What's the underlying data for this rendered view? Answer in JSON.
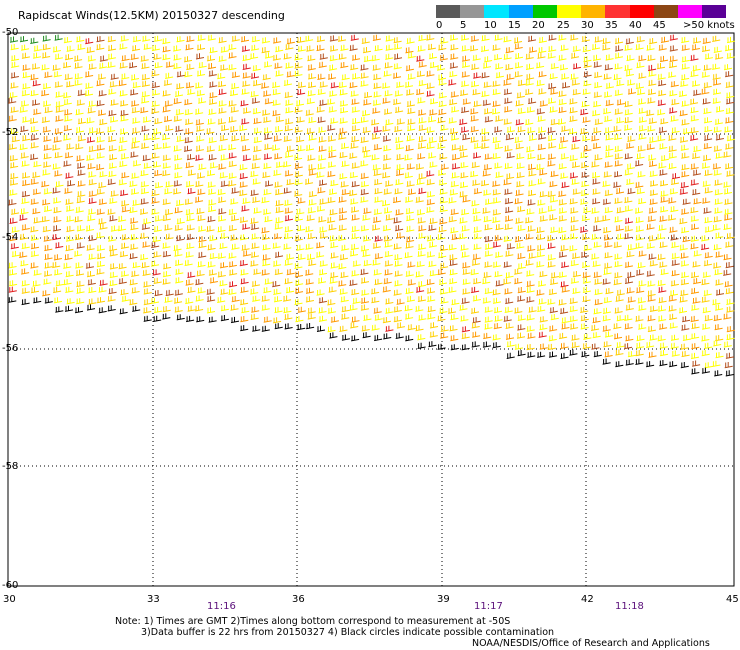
{
  "title": "Rapidscat Winds(12.5KM) 20150327 descending",
  "legend": {
    "labels": [
      "0",
      "5",
      "10",
      "15",
      "20",
      "25",
      "30",
      "35",
      "40",
      "45",
      ">50 knots"
    ],
    "colors": [
      "#5a5a5a",
      "#969696",
      "#00e6ff",
      "#00a0ff",
      "#00c800",
      "#ffff00",
      "#ffb400",
      "#ff3232",
      "#ff0000",
      "#8c4614",
      "#ff00ff",
      "#5a0096"
    ]
  },
  "latitude_labels": [
    "-50",
    "-52",
    "-54",
    "-56",
    "-58",
    "-60"
  ],
  "longitude_labels": [
    "30",
    "33",
    "36",
    "39",
    "42",
    "45"
  ],
  "time_labels": [
    "11:16",
    "11:17",
    "11:18"
  ],
  "notes": [
    "Note: 1) Times are GMT 2)Times along bottom correspond to measurement at -50S",
    "3)Data buffer is 22 hrs from 20150327 4) Black circles indicate possible contamination",
    "NOAA/NESDIS/Office of Research and Applications"
  ],
  "barb_colors": {
    "yellow": "#ffff00",
    "gold": "#ffd000",
    "orange": "#ff9a00",
    "brown": "#b4501e",
    "red": "#e11e1e",
    "green": "#1e8c1e",
    "black": "#000000"
  }
}
